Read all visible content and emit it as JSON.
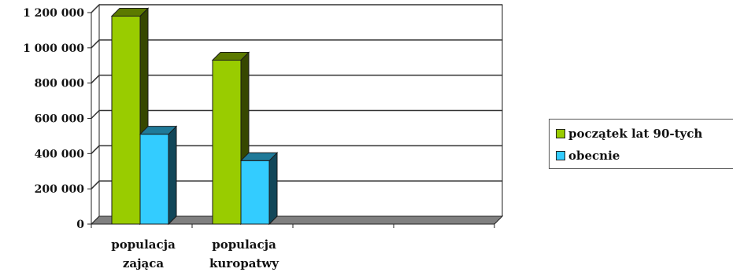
{
  "chart_data": {
    "type": "bar",
    "categories": [
      [
        "populacja",
        "zająca"
      ],
      [
        "populacja",
        "kuropatwy"
      ]
    ],
    "series": [
      {
        "name": "początek lat 90-tych",
        "values": [
          1180000,
          930000
        ],
        "color": "#99cc00"
      },
      {
        "name": "obecnie",
        "values": [
          510000,
          360000
        ],
        "color": "#33ccff"
      }
    ],
    "ylim": [
      0,
      1200000
    ],
    "yticks": [
      0,
      200000,
      400000,
      600000,
      800000,
      1000000,
      1200000
    ],
    "ytick_labels": [
      "0",
      "200 000",
      "400 000",
      "600 000",
      "800 000",
      "1 000 000",
      "1 200 000"
    ],
    "grid": true,
    "style": "3d-column",
    "legend_position": "right"
  }
}
